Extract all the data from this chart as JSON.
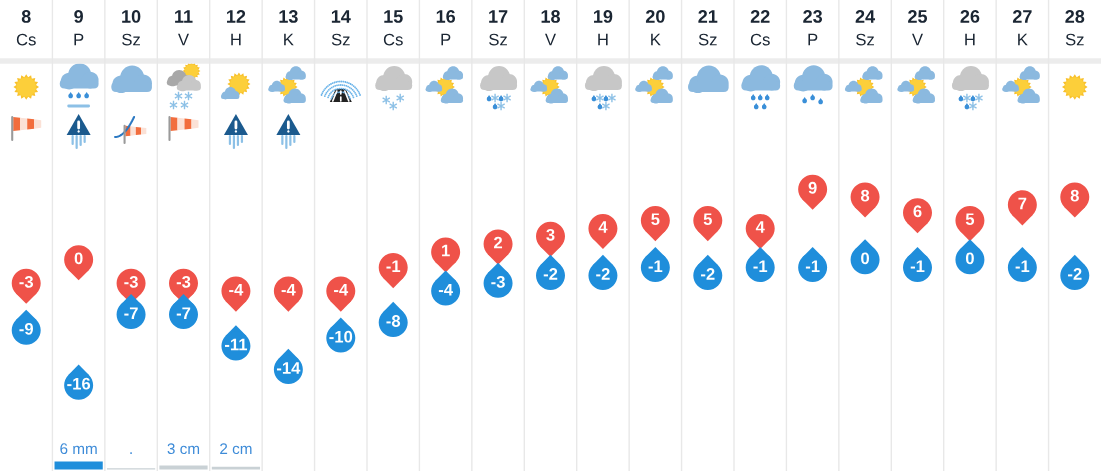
{
  "chart_data": [
    {
      "type": "scatter",
      "categories": [
        "8\nCs",
        "9\nP",
        "10\nSz",
        "11\nV",
        "12\nH",
        "13\nK",
        "14\nSz",
        "15\nCs",
        "16\nP",
        "17\nSz",
        "18\nV",
        "19\nH",
        "20\nK",
        "21\nSz",
        "22\nCs",
        "23\nP",
        "24\nSz",
        "25\nV",
        "26\nH",
        "27\nK",
        "28\nSz"
      ],
      "series": [
        {
          "color": "#ef5249",
          "values": [
            -3,
            0,
            -3,
            -3,
            -4,
            -4,
            -4,
            -1,
            1,
            2,
            3,
            4,
            5,
            5,
            4,
            9,
            8,
            6,
            5,
            7,
            8
          ]
        },
        {
          "color": "#1f8edb",
          "values": [
            -9,
            -16,
            -7,
            -7,
            -11,
            -14,
            -10,
            -8,
            -4,
            -3,
            -2,
            -2,
            -1,
            -2,
            -1,
            -1,
            0,
            -1,
            0,
            -1,
            -2
          ]
        }
      ],
      "marker": "circle",
      "data_labels": true,
      "grid": "x",
      "tick_labels": "x"
    },
    {
      "type": "bar",
      "categories": [
        null,
        null,
        null,
        null,
        null,
        null,
        null,
        null,
        null,
        null,
        null,
        null,
        null,
        null,
        null,
        null,
        null,
        null,
        null,
        null,
        null
      ],
      "values": [
        null,
        6,
        1,
        3,
        2,
        null,
        null,
        null,
        null,
        null,
        null,
        null,
        null,
        null,
        null,
        null,
        null,
        null,
        null,
        null,
        null
      ],
      "colors": [
        null,
        "#1f8edb",
        "#c9d1d5",
        "#c9d1d5",
        "#c9d1d5",
        null,
        null,
        null,
        null,
        null,
        null,
        null,
        null,
        null,
        null,
        null,
        null,
        null,
        null,
        null,
        null
      ],
      "value_labels": [
        null,
        "6 mm",
        ".",
        "3 cm",
        "2 cm",
        null,
        null,
        null,
        null,
        null,
        null,
        null,
        null,
        null,
        null,
        null,
        null,
        null,
        null,
        null,
        null
      ],
      "tick_labels": false
    }
  ]
}
